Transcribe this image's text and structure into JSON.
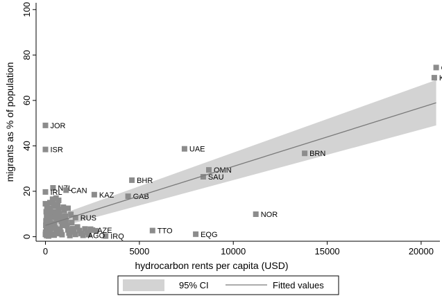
{
  "chart_data": {
    "type": "scatter",
    "xlabel": "hydrocarbon rents per capita (USD)",
    "ylabel": "migrants as % of population",
    "xlim": [
      -500,
      21000
    ],
    "ylim": [
      -2,
      103
    ],
    "xticks": [
      0,
      5000,
      10000,
      15000,
      20000
    ],
    "xtick_labels": [
      "0",
      "5000",
      "10000",
      "15000",
      "20000"
    ],
    "yticks": [
      0,
      20,
      40,
      60,
      80,
      100
    ],
    "ytick_labels": [
      "0",
      "20",
      "40",
      "60",
      "80",
      "100"
    ],
    "grid": false,
    "legend_position": "bottom",
    "colors": {
      "points": "#8c8c8c",
      "ci_band": "#d3d3d3",
      "fit_line": "#7a7a7a"
    },
    "labeled_points": [
      {
        "label": "QAT",
        "x": 20800,
        "y": 74.5
      },
      {
        "label": "KWT",
        "x": 20700,
        "y": 70
      },
      {
        "label": "BRN",
        "x": 13800,
        "y": 36.7
      },
      {
        "label": "UAE",
        "x": 7400,
        "y": 38.7
      },
      {
        "label": "OMN",
        "x": 8700,
        "y": 29.4
      },
      {
        "label": "SAU",
        "x": 8400,
        "y": 26.4
      },
      {
        "label": "JOR",
        "x": 0,
        "y": 49
      },
      {
        "label": "ISR",
        "x": 0,
        "y": 38.4
      },
      {
        "label": "BHR",
        "x": 4600,
        "y": 24.9
      },
      {
        "label": "GAB",
        "x": 4400,
        "y": 17.8
      },
      {
        "label": "KAZ",
        "x": 2600,
        "y": 18.5
      },
      {
        "label": "NZL",
        "x": 400,
        "y": 21.5
      },
      {
        "label": "CAN",
        "x": 1100,
        "y": 20.5
      },
      {
        "label": "IRL",
        "x": 0,
        "y": 19.7
      },
      {
        "label": "NOR",
        "x": 11200,
        "y": 9.9
      },
      {
        "label": "TTO",
        "x": 5700,
        "y": 2.7
      },
      {
        "label": "EQG",
        "x": 8000,
        "y": 1.1
      },
      {
        "label": "IRQ",
        "x": 3200,
        "y": 0.3
      },
      {
        "label": "AGO",
        "x": 2000,
        "y": 0.6
      },
      {
        "label": "RUS",
        "x": 1600,
        "y": 8.4
      },
      {
        "label": "AZE",
        "x": 2500,
        "y": 2.9
      }
    ],
    "background_points": [
      [
        0,
        14.5
      ],
      [
        80,
        13
      ],
      [
        150,
        12
      ],
      [
        40,
        11
      ],
      [
        120,
        10
      ],
      [
        60,
        9
      ],
      [
        200,
        8
      ],
      [
        30,
        7
      ],
      [
        100,
        6.5
      ],
      [
        170,
        5.5
      ],
      [
        20,
        5
      ],
      [
        90,
        4.5
      ],
      [
        140,
        4
      ],
      [
        50,
        3.5
      ],
      [
        110,
        3
      ],
      [
        180,
        2.5
      ],
      [
        10,
        2
      ],
      [
        70,
        1.8
      ],
      [
        130,
        1.5
      ],
      [
        0,
        1
      ],
      [
        220,
        0.8
      ],
      [
        60,
        0.5
      ],
      [
        160,
        0.3
      ],
      [
        250,
        12.5
      ],
      [
        300,
        10.5
      ],
      [
        350,
        8.5
      ],
      [
        280,
        6
      ],
      [
        320,
        4.2
      ],
      [
        260,
        2.2
      ],
      [
        310,
        1.2
      ],
      [
        400,
        15.5
      ],
      [
        450,
        13.5
      ],
      [
        500,
        11
      ],
      [
        550,
        9.5
      ],
      [
        600,
        7.5
      ],
      [
        480,
        5.8
      ],
      [
        520,
        3.8
      ],
      [
        580,
        2.5
      ],
      [
        620,
        1.4
      ],
      [
        460,
        0.7
      ],
      [
        700,
        12
      ],
      [
        750,
        10
      ],
      [
        800,
        8.8
      ],
      [
        850,
        6.8
      ],
      [
        900,
        5
      ],
      [
        780,
        3.3
      ],
      [
        820,
        1.9
      ],
      [
        880,
        0.9
      ],
      [
        1000,
        11.5
      ],
      [
        1050,
        9
      ],
      [
        1100,
        7
      ],
      [
        1150,
        4.8
      ],
      [
        1200,
        3
      ],
      [
        1250,
        1.6
      ],
      [
        1300,
        0.5
      ],
      [
        1400,
        6.2
      ],
      [
        1450,
        3.6
      ],
      [
        1500,
        2.1
      ],
      [
        1600,
        1
      ],
      [
        1700,
        4.3
      ],
      [
        1800,
        2.7
      ],
      [
        1900,
        1.4
      ],
      [
        2100,
        3.4
      ],
      [
        2200,
        1.9
      ],
      [
        2400,
        3.3
      ],
      [
        2700,
        2.6
      ],
      [
        2300,
        0.9
      ],
      [
        650,
        14
      ],
      [
        950,
        13
      ],
      [
        1350,
        9.8
      ],
      [
        380,
        16.5
      ],
      [
        560,
        17
      ],
      [
        240,
        15
      ],
      [
        700,
        16
      ],
      [
        1200,
        12.5
      ]
    ],
    "series": [
      {
        "name": "Fitted values",
        "type": "line",
        "x": [
          0,
          20800
        ],
        "y": [
          5.0,
          59.0
        ]
      },
      {
        "name": "95% CI",
        "type": "area",
        "x": [
          0,
          20800
        ],
        "lower": [
          2.6,
          49.0
        ],
        "upper": [
          7.4,
          69.0
        ]
      }
    ],
    "legend": [
      {
        "name": "95% CI",
        "type": "area"
      },
      {
        "name": "Fitted values",
        "type": "line"
      }
    ]
  }
}
